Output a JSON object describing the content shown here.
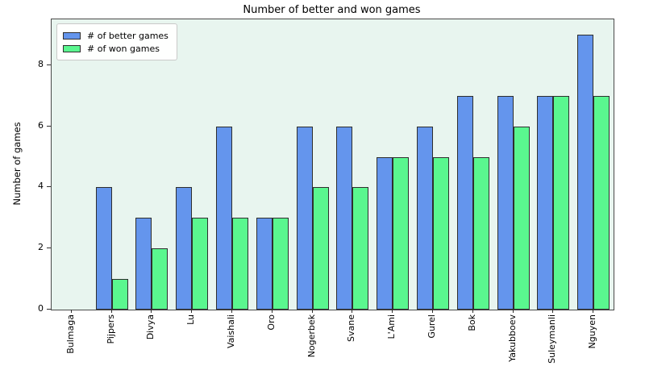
{
  "title": "Number of better and won games",
  "colors": {
    "figure_bg": "#ffffff",
    "plot_bg": "#e8f5ef",
    "better_bar": "#6495ed",
    "won_bar": "#5af78f",
    "bar_edge": "#2e2e2e",
    "axis": "#4a4a4a"
  },
  "chart_data": {
    "type": "bar",
    "title": "Number of better and won games",
    "xlabel": "",
    "ylabel": "Number of games",
    "categories": [
      "Bulmaga",
      "Pijpers",
      "Divya",
      "Lu",
      "Vaishali",
      "Oro",
      "Nogerbek",
      "Svane",
      "L'Ami",
      "Gurel",
      "Bok",
      "Yakubboev",
      "Suleymanli",
      "Nguyen"
    ],
    "series": [
      {
        "name": "# of better games",
        "color": "#6495ed",
        "values": [
          0,
          4,
          3,
          4,
          6,
          3,
          6,
          6,
          5,
          6,
          7,
          7,
          7,
          9
        ]
      },
      {
        "name": "# of won games",
        "color": "#5af78f",
        "values": [
          0,
          1,
          2,
          3,
          3,
          3,
          4,
          4,
          5,
          5,
          5,
          6,
          7,
          7
        ]
      }
    ],
    "yticks": [
      0,
      2,
      4,
      6,
      8
    ],
    "ylim": [
      0,
      9.5
    ],
    "grid": false,
    "legend_position": "upper left"
  }
}
